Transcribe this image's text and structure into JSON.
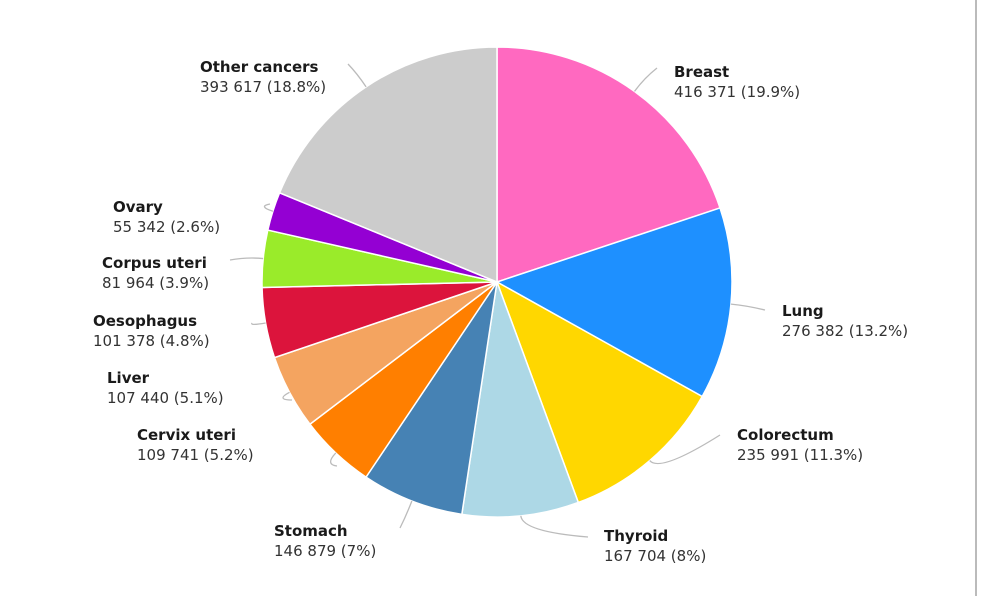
{
  "chart_data": {
    "type": "pie",
    "start": "top, clockwise",
    "slices": [
      {
        "label": "Breast",
        "value": 416371,
        "value_text": "416 371 (19.9%)",
        "percent": 19.9,
        "color": "#ff69c0"
      },
      {
        "label": "Lung",
        "value": 276382,
        "value_text": "276 382 (13.2%)",
        "percent": 13.2,
        "color": "#1e90ff"
      },
      {
        "label": "Colorectum",
        "value": 235991,
        "value_text": "235 991 (11.3%)",
        "percent": 11.3,
        "color": "#ffd700"
      },
      {
        "label": "Thyroid",
        "value": 167704,
        "value_text": "167 704 (8%)",
        "percent": 8,
        "color": "#add8e6"
      },
      {
        "label": "Stomach",
        "value": 146879,
        "value_text": "146 879 (7%)",
        "percent": 7,
        "color": "#4682b4"
      },
      {
        "label": "Cervix uteri",
        "value": 109741,
        "value_text": "109 741 (5.2%)",
        "percent": 5.2,
        "color": "#ff7f00"
      },
      {
        "label": "Liver",
        "value": 107440,
        "value_text": "107 440 (5.1%)",
        "percent": 5.1,
        "color": "#f4a460"
      },
      {
        "label": "Oesophagus",
        "value": 101378,
        "value_text": "101 378 (4.8%)",
        "percent": 4.8,
        "color": "#dc143c"
      },
      {
        "label": "Corpus uteri",
        "value": 81964,
        "value_text": "81 964 (3.9%)",
        "percent": 3.9,
        "color": "#9aeb2a"
      },
      {
        "label": "Ovary",
        "value": 55342,
        "value_text": "55 342 (2.6%)",
        "percent": 2.6,
        "color": "#9400d3"
      },
      {
        "label": "Other cancers",
        "value": 393617,
        "value_text": "393 617 (18.8%)",
        "percent": 18.8,
        "color": "#cccccc"
      }
    ]
  }
}
